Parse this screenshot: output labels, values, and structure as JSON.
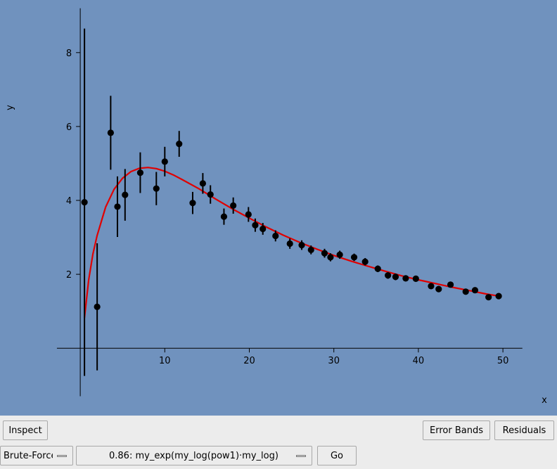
{
  "chart_data": {
    "type": "scatter",
    "title": "",
    "xlabel": "x",
    "ylabel": "y",
    "xlim": [
      -2.8,
      52.3
    ],
    "ylim": [
      -1.3,
      9.2
    ],
    "xticks": [
      10,
      20,
      30,
      40,
      50
    ],
    "yticks": [
      2,
      4,
      6,
      8
    ],
    "grid": false,
    "background": "#7092be",
    "series": [
      {
        "kind": "errorbar",
        "color": "#000000",
        "points": [
          {
            "x": 0.5,
            "y": 3.95,
            "err": 4.7
          },
          {
            "x": 2.0,
            "y": 1.12,
            "err": 1.72
          },
          {
            "x": 3.6,
            "y": 5.83,
            "err": 1.0
          },
          {
            "x": 4.4,
            "y": 3.83,
            "err": 0.82
          },
          {
            "x": 5.3,
            "y": 4.15,
            "err": 0.7
          },
          {
            "x": 7.1,
            "y": 4.75,
            "err": 0.55
          },
          {
            "x": 9.0,
            "y": 4.32,
            "err": 0.45
          },
          {
            "x": 10.0,
            "y": 5.05,
            "err": 0.4
          },
          {
            "x": 11.7,
            "y": 5.53,
            "err": 0.35
          },
          {
            "x": 13.3,
            "y": 3.93,
            "err": 0.3
          },
          {
            "x": 14.5,
            "y": 4.46,
            "err": 0.28
          },
          {
            "x": 15.4,
            "y": 4.16,
            "err": 0.25
          },
          {
            "x": 17.0,
            "y": 3.56,
            "err": 0.22
          },
          {
            "x": 18.1,
            "y": 3.86,
            "err": 0.22
          },
          {
            "x": 19.9,
            "y": 3.62,
            "err": 0.2
          },
          {
            "x": 20.7,
            "y": 3.33,
            "err": 0.18
          },
          {
            "x": 21.6,
            "y": 3.23,
            "err": 0.16
          },
          {
            "x": 23.1,
            "y": 3.04,
            "err": 0.15
          },
          {
            "x": 24.8,
            "y": 2.83,
            "err": 0.14
          },
          {
            "x": 26.2,
            "y": 2.79,
            "err": 0.13
          },
          {
            "x": 27.3,
            "y": 2.66,
            "err": 0.12
          },
          {
            "x": 28.9,
            "y": 2.57,
            "err": 0.12
          },
          {
            "x": 29.6,
            "y": 2.46,
            "err": 0.11
          },
          {
            "x": 30.7,
            "y": 2.53,
            "err": 0.11
          },
          {
            "x": 32.4,
            "y": 2.46,
            "err": 0.1
          },
          {
            "x": 33.7,
            "y": 2.34,
            "err": 0.1
          },
          {
            "x": 35.2,
            "y": 2.15,
            "err": 0.09
          },
          {
            "x": 36.4,
            "y": 1.97,
            "err": 0.09
          },
          {
            "x": 37.3,
            "y": 1.93,
            "err": 0.09
          },
          {
            "x": 38.5,
            "y": 1.89,
            "err": 0.08
          },
          {
            "x": 39.7,
            "y": 1.88,
            "err": 0.08
          },
          {
            "x": 41.5,
            "y": 1.68,
            "err": 0.08
          },
          {
            "x": 42.4,
            "y": 1.6,
            "err": 0.07
          },
          {
            "x": 43.8,
            "y": 1.72,
            "err": 0.07
          },
          {
            "x": 45.6,
            "y": 1.53,
            "err": 0.07
          },
          {
            "x": 46.7,
            "y": 1.57,
            "err": 0.06
          },
          {
            "x": 48.3,
            "y": 1.38,
            "err": 0.06
          },
          {
            "x": 49.5,
            "y": 1.41,
            "err": 0.06
          }
        ]
      },
      {
        "kind": "line",
        "color": "#e00000",
        "x": [
          0.5,
          1.0,
          1.5,
          2.0,
          3.0,
          4.0,
          5.0,
          6.0,
          7.0,
          8.0,
          9.0,
          10.0,
          11.0,
          12.0,
          14.0,
          16.0,
          18.0,
          20.0,
          22.0,
          24.0,
          26.0,
          28.0,
          30.0,
          32.0,
          34.0,
          36.0,
          38.0,
          40.0,
          42.0,
          44.0,
          46.0,
          48.0,
          49.5
        ],
        "y": [
          0.82,
          1.85,
          2.55,
          3.05,
          3.82,
          4.3,
          4.6,
          4.78,
          4.87,
          4.89,
          4.86,
          4.79,
          4.69,
          4.57,
          4.32,
          4.04,
          3.77,
          3.52,
          3.28,
          3.06,
          2.86,
          2.68,
          2.51,
          2.36,
          2.22,
          2.09,
          1.96,
          1.85,
          1.75,
          1.65,
          1.56,
          1.47,
          1.41
        ]
      }
    ]
  },
  "controls": {
    "inspect_label": "Inspect",
    "error_bands_label": "Error Bands",
    "residuals_label": "Residuals",
    "method_value": "Brute-Force",
    "fit_value": "0.86: my_exp(my_log(pow1)·my_log)",
    "go_label": "Go"
  }
}
